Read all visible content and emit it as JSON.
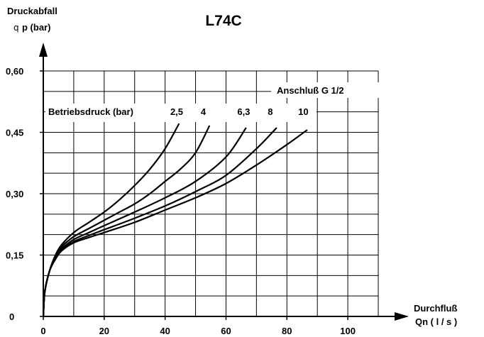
{
  "chart_data": {
    "type": "line",
    "title": "L74C",
    "ylabel_line1": "Druckabfall",
    "ylabel_symbol": "q",
    "ylabel_line2": "p (bar)",
    "xlabel_line1": "Durchfluß",
    "xlabel_line2": "Qn ( l / s )",
    "connection_label": "Anschluß G 1/2",
    "operating_pressure_label": "Betriebsdruck (bar)",
    "xlim": [
      0,
      110
    ],
    "ylim": [
      0,
      0.6
    ],
    "grid": true,
    "x_ticks": [
      {
        "value": 0,
        "label": "0"
      },
      {
        "value": 20,
        "label": "20"
      },
      {
        "value": 40,
        "label": "40"
      },
      {
        "value": 60,
        "label": "60"
      },
      {
        "value": 80,
        "label": "80"
      },
      {
        "value": 100,
        "label": "100"
      }
    ],
    "y_ticks": [
      {
        "value": 0,
        "label": "0"
      },
      {
        "value": 0.15,
        "label": "0,15"
      },
      {
        "value": 0.3,
        "label": "0,30"
      },
      {
        "value": 0.45,
        "label": "0,45"
      },
      {
        "value": 0.6,
        "label": "0,60"
      }
    ],
    "series": [
      {
        "name": "2,5",
        "x": [
          0,
          0.5,
          2,
          4,
          6,
          10,
          15,
          20,
          25,
          30,
          35,
          40,
          44.5
        ],
        "y": [
          0,
          0.06,
          0.11,
          0.15,
          0.175,
          0.205,
          0.23,
          0.255,
          0.285,
          0.32,
          0.36,
          0.41,
          0.47
        ]
      },
      {
        "name": "4",
        "x": [
          0,
          0.5,
          2,
          4,
          6,
          10,
          15,
          20,
          25,
          30,
          35,
          40,
          45,
          50,
          54.5
        ],
        "y": [
          0,
          0.06,
          0.11,
          0.148,
          0.17,
          0.195,
          0.215,
          0.235,
          0.255,
          0.275,
          0.3,
          0.33,
          0.36,
          0.4,
          0.465
        ]
      },
      {
        "name": "6,3",
        "x": [
          0,
          0.5,
          2,
          4,
          6,
          10,
          15,
          20,
          30,
          40,
          50,
          60,
          66.5
        ],
        "y": [
          0,
          0.06,
          0.11,
          0.145,
          0.165,
          0.188,
          0.205,
          0.222,
          0.255,
          0.29,
          0.33,
          0.39,
          0.46
        ]
      },
      {
        "name": "8",
        "x": [
          0,
          0.5,
          2,
          4,
          6,
          10,
          15,
          20,
          30,
          40,
          50,
          60,
          70,
          76.5
        ],
        "y": [
          0,
          0.06,
          0.11,
          0.143,
          0.162,
          0.183,
          0.198,
          0.212,
          0.24,
          0.27,
          0.305,
          0.345,
          0.41,
          0.46
        ]
      },
      {
        "name": "10",
        "x": [
          0,
          0.5,
          2,
          4,
          6,
          10,
          15,
          20,
          30,
          40,
          50,
          60,
          70,
          80,
          86.5
        ],
        "y": [
          0,
          0.06,
          0.11,
          0.14,
          0.16,
          0.18,
          0.193,
          0.205,
          0.23,
          0.26,
          0.29,
          0.325,
          0.37,
          0.42,
          0.455
        ]
      }
    ]
  }
}
